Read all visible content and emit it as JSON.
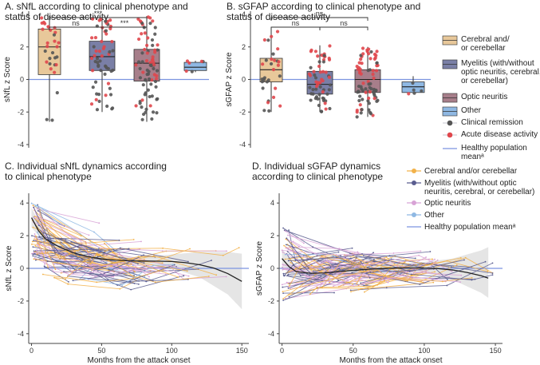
{
  "colors": {
    "cerebral": "#e8c89a",
    "myelitis": "#7a7fa6",
    "optic": "#a77e8a",
    "other": "#8fb8e3",
    "remission": "#555555",
    "active": "#e0474c",
    "healthy": "#7c95e0",
    "line_cerebral": "#f2b24a",
    "line_myelitis": "#5a5d8f",
    "line_optic": "#d8a3d6",
    "line_other": "#8fb8e3"
  },
  "chart_data": [
    {
      "id": "A",
      "type": "box",
      "title": "A. sNfL according to clinical phenotype and status of disease activity",
      "title_lines": [
        "A.  sNfL according to clinical phenotype and",
        "status of disease activity"
      ],
      "ylabel": "sNfL z Score",
      "ylim": [
        -4,
        4
      ],
      "yticks": [
        -4,
        -2,
        0,
        2,
        4
      ],
      "reference_y": 0,
      "categories": [
        "Cerebral and/or cerebellar",
        "Myelitis",
        "Optic neuritis",
        "Other"
      ],
      "boxes": [
        {
          "category": "Cerebral and/or cerebellar",
          "q1": 0.3,
          "median": 2.0,
          "q3": 3.1,
          "whisker_low": -2.6,
          "whisker_high": 3.9
        },
        {
          "category": "Myelitis",
          "q1": 0.55,
          "median": 1.4,
          "q3": 2.35,
          "whisker_low": -2.0,
          "whisker_high": 3.8
        },
        {
          "category": "Optic neuritis",
          "q1": -0.1,
          "median": 1.0,
          "q3": 1.85,
          "whisker_low": -2.6,
          "whisker_high": 3.9
        },
        {
          "category": "Other",
          "q1": 0.55,
          "median": 0.75,
          "q3": 1.05,
          "whisker_low": 0.45,
          "whisker_high": 1.15
        }
      ],
      "points_per_group": [
        30,
        60,
        80,
        6
      ],
      "comparisons": [
        {
          "groups": [
            "Cerebral and/or cerebellar",
            "Optic neuritis"
          ],
          "label": "***"
        },
        {
          "groups": [
            "Cerebral and/or cerebellar",
            "Myelitis"
          ],
          "label": "ns"
        },
        {
          "groups": [
            "Myelitis",
            "Optic neuritis"
          ],
          "label": "***"
        }
      ]
    },
    {
      "id": "B",
      "type": "box",
      "title": "B. sGFAP according to clinical phenotype and status of disease activity",
      "title_lines": [
        "B.  sGFAP according to clinical phenotype and",
        "status of disease activity"
      ],
      "ylabel": "sGFAP z Score",
      "ylim": [
        -4,
        4
      ],
      "yticks": [
        -4,
        -2,
        0,
        2,
        4
      ],
      "reference_y": 0,
      "categories": [
        "Cerebral and/or cerebellar",
        "Myelitis",
        "Optic neuritis",
        "Other"
      ],
      "boxes": [
        {
          "category": "Cerebral and/or cerebellar",
          "q1": -0.15,
          "median": 0.6,
          "q3": 1.3,
          "whisker_low": -2.0,
          "whisker_high": 3.2
        },
        {
          "category": "Myelitis",
          "q1": -0.9,
          "median": -0.3,
          "q3": 0.5,
          "whisker_low": -2.0,
          "whisker_high": 2.1
        },
        {
          "category": "Optic neuritis",
          "q1": -0.8,
          "median": 0.0,
          "q3": 0.6,
          "whisker_low": -2.3,
          "whisker_high": 2.0
        },
        {
          "category": "Other",
          "q1": -0.8,
          "median": -0.45,
          "q3": -0.15,
          "whisker_low": -0.9,
          "whisker_high": 0.2
        }
      ],
      "points_per_group": [
        30,
        60,
        80,
        5
      ],
      "comparisons": [
        {
          "groups": [
            "Cerebral and/or cerebellar",
            "Optic neuritis"
          ],
          "label": "ns"
        },
        {
          "groups": [
            "Cerebral and/or cerebellar",
            "Myelitis"
          ],
          "label": "ns"
        },
        {
          "groups": [
            "Myelitis",
            "Optic neuritis"
          ],
          "label": "ns"
        }
      ]
    },
    {
      "id": "C",
      "type": "line",
      "title": "C. Individual sNfL dynamics according to clinical phenotype",
      "title_lines": [
        "C.  Individual sNfL dynamics according",
        "to clinical phenotype"
      ],
      "xlabel": "Months from the attack onset",
      "ylabel": "sNfL z Score",
      "xlim": [
        -2,
        155
      ],
      "ylim": [
        -4.4,
        4.4
      ],
      "xticks": [
        0,
        50,
        100,
        150
      ],
      "yticks": [
        -4,
        -2,
        0,
        2,
        4
      ],
      "reference_y": 0,
      "trend": {
        "x": [
          0,
          5,
          10,
          20,
          30,
          40,
          50,
          60,
          70,
          80,
          90,
          100,
          110,
          120,
          130,
          140,
          150
        ],
        "y": [
          3.1,
          2.3,
          1.8,
          1.3,
          0.95,
          0.72,
          0.58,
          0.5,
          0.46,
          0.45,
          0.44,
          0.42,
          0.35,
          0.22,
          0.02,
          -0.32,
          -0.8
        ]
      },
      "band": {
        "x": [
          0,
          10,
          20,
          40,
          60,
          80,
          100,
          120,
          140,
          150
        ],
        "upper": [
          3.7,
          2.1,
          1.55,
          0.95,
          0.7,
          0.7,
          0.85,
          1.0,
          1.0,
          0.9
        ],
        "lower": [
          2.5,
          1.5,
          1.05,
          0.5,
          0.3,
          0.2,
          0.0,
          -0.55,
          -1.6,
          -2.5
        ]
      },
      "n_series": 110
    },
    {
      "id": "D",
      "type": "line",
      "title": "D. Individual sGFAP dynamics according to clinical phenotype",
      "title_lines": [
        "D.  Individual sGFAP dynamics",
        "according to clinical phenotype"
      ],
      "xlabel": "Months from the attack onset",
      "ylabel": "sGFAP z Score",
      "xlim": [
        -2,
        155
      ],
      "ylim": [
        -4.4,
        4.4
      ],
      "xticks": [
        0,
        50,
        100,
        150
      ],
      "yticks": [
        -4,
        -2,
        0,
        2,
        4
      ],
      "reference_y": 0,
      "trend": {
        "x": [
          0,
          5,
          10,
          20,
          30,
          40,
          50,
          60,
          70,
          80,
          90,
          100,
          110,
          120,
          130,
          140,
          145
        ],
        "y": [
          0.6,
          0.1,
          -0.2,
          -0.3,
          -0.28,
          -0.2,
          -0.12,
          -0.06,
          -0.01,
          0.02,
          0.03,
          0.02,
          -0.02,
          -0.1,
          -0.25,
          -0.45,
          -0.6
        ]
      },
      "band": {
        "x": [
          0,
          10,
          20,
          40,
          60,
          80,
          100,
          120,
          140,
          145
        ],
        "upper": [
          1.2,
          0.1,
          -0.1,
          0.05,
          0.15,
          0.25,
          0.4,
          0.6,
          1.1,
          1.3
        ],
        "lower": [
          0.0,
          -0.5,
          -0.55,
          -0.45,
          -0.3,
          -0.2,
          -0.3,
          -0.7,
          -1.5,
          -1.8
        ]
      },
      "n_series": 110
    }
  ],
  "legend_top": {
    "items": [
      {
        "lines": [
          "Cerebral and/",
          "or cerebellar"
        ]
      },
      {
        "lines": [
          "Myelitis (with/without",
          "optic neuritis, cerebral,",
          "or cerebellar)"
        ]
      },
      {
        "lines": [
          "Optic neuritis"
        ]
      },
      {
        "lines": [
          "Other"
        ]
      },
      {
        "lines": [
          "Clinical remission"
        ]
      },
      {
        "lines": [
          "Acute disease activity"
        ]
      },
      {
        "lines": [
          "Healthy population",
          "meanᵃ"
        ]
      }
    ]
  },
  "legend_bottom": {
    "items": [
      {
        "lines": [
          "Cerebral and/or cerebellar"
        ]
      },
      {
        "lines": [
          "Myelitis (with/without optic",
          "neuritis, cerebral, or cerebellar)"
        ]
      },
      {
        "lines": [
          "Optic neuritis"
        ]
      },
      {
        "lines": [
          "Other"
        ]
      },
      {
        "lines": [
          "Healthy population meanᵃ"
        ]
      }
    ]
  }
}
